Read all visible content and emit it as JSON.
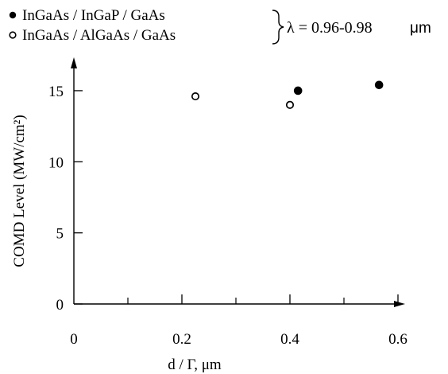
{
  "chart_data": {
    "type": "scatter",
    "title": "",
    "xlabel": "d / Γ, μm",
    "ylabel": "COMD Level  (MW/cm²)",
    "xlim": [
      0,
      0.7
    ],
    "ylim": [
      0,
      17
    ],
    "x_ticks": [
      0,
      0.2,
      0.4,
      0.6
    ],
    "x_tick_labels": [
      "0",
      "0.2",
      "0.4",
      "0.6"
    ],
    "x_minor_ticks": [
      0.1,
      0.3,
      0.5
    ],
    "y_ticks": [
      0,
      5,
      10,
      15
    ],
    "y_tick_labels": [
      "0",
      "5",
      "10",
      "15"
    ],
    "grid": false,
    "legend_position": "top-left",
    "legend_annotation": {
      "text": "λ = 0.96-0.98",
      "unit": "μm"
    },
    "series": [
      {
        "name": "InGaAs / InGaP / GaAs",
        "marker": "filled-circle",
        "color": "#000000",
        "points": [
          {
            "x": 0.415,
            "y": 15.0
          },
          {
            "x": 0.565,
            "y": 15.4
          }
        ]
      },
      {
        "name": "InGaAs / AlGaAs / GaAs",
        "marker": "open-circle",
        "color": "#000000",
        "points": [
          {
            "x": 0.225,
            "y": 14.6
          },
          {
            "x": 0.4,
            "y": 14.0
          }
        ]
      }
    ]
  }
}
